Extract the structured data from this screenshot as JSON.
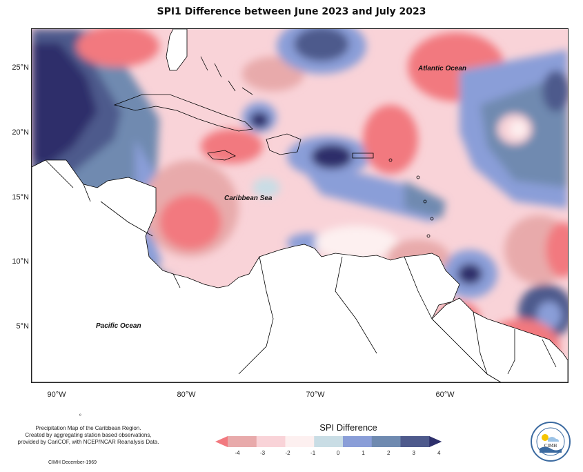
{
  "title": "SPI1 Difference between June 2023 and July 2023",
  "map": {
    "lat_labels": [
      "25°N",
      "20°N",
      "15°N",
      "10°N",
      "5°N"
    ],
    "lon_labels": [
      "90°W",
      "80°W",
      "70°W",
      "60°W"
    ],
    "places": {
      "atlantic": "Atlantic Ocean",
      "caribbean": "Caribbean Sea",
      "pacific": "Pacific Ocean"
    },
    "land_color": "#ffffff",
    "border_color": "#000000"
  },
  "legend": {
    "title": "SPI Difference",
    "ticks": [
      "-4",
      "-3",
      "-2",
      "-1",
      "0",
      "1",
      "2",
      "3",
      "4"
    ],
    "colors": [
      "#f2797f",
      "#e8aaab",
      "#f9d3d8",
      "#fdf0f0",
      "#c9dde5",
      "#8a9ed8",
      "#6f8ab0",
      "#4e5a8c",
      "#2d2f6b"
    ]
  },
  "credits": {
    "line1": "Precipitation Map of the Caribbean Region.",
    "line2": "Created by aggregating station based observations,",
    "line3": "provided by CariCOF, with NCEP/NCAR Reanalysis Data.",
    "date": "CIMH December-1969",
    "marker": "º"
  },
  "logo": {
    "text": "CIMH"
  }
}
